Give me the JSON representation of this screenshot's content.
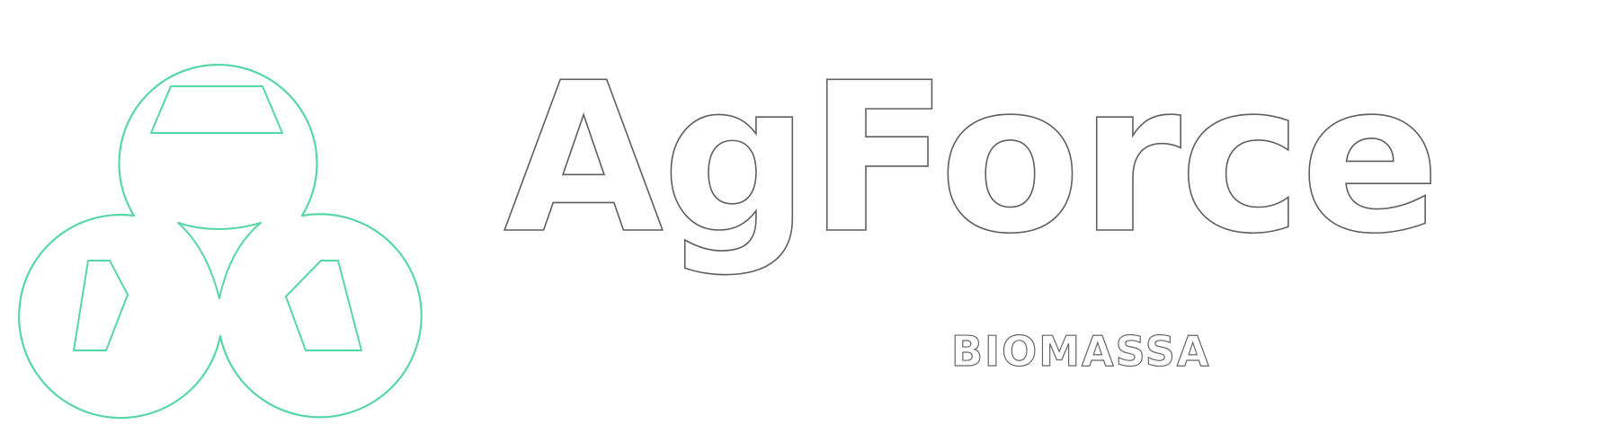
{
  "brand": {
    "name": "AgForce",
    "tagline": "BIOMASSA",
    "mark_icon": "three-circle-biomass-logo-icon",
    "colors": {
      "mark_outline": "#57d6a6",
      "text_outline": "#5f5f5f",
      "background": "#ffffff"
    }
  }
}
